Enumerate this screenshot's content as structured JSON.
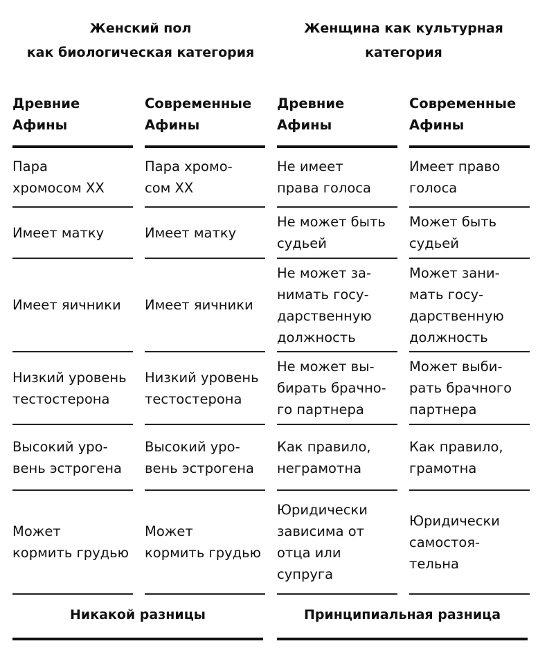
{
  "groups": [
    {
      "title": "Женский пол\nкак биологическая категория",
      "footer": "Никакой разницы"
    },
    {
      "title": "Женщина как культурная\nкатегория",
      "footer": "Принципиальная разница"
    }
  ],
  "columns": [
    "Древние\nАфины",
    "Современные\nАфины",
    "Древние\nАфины",
    "Современные\nАфины"
  ],
  "rows": [
    [
      "Пара\nхромосом XX",
      "Пара хромо-\nсом XX",
      "Не имеет\nправа голоса",
      "Имеет право\nголоса"
    ],
    [
      "Имеет матку",
      "Имеет матку",
      "Не может быть\nсудьей",
      "Может быть\nсудьей"
    ],
    [
      "Имеет яичники",
      "Имеет яичники",
      "Не может за-\nнимать госу-\nдарственную\nдолжность",
      "Может зани-\nмать госу-\nдарственную\nдолжность"
    ],
    [
      "Низкий уровень\nтестостерона",
      "Низкий уровень\nтестостерона",
      "Не может вы-\nбирать брачно-\nго партнера",
      "Может выби-\nрать брачного\nпартнера"
    ],
    [
      "Высокий уро-\nвень эстрогена",
      "Высокий уро-\nвень эстрогена",
      "Как правило,\nнеграмотна",
      "Как правило,\nграмотна"
    ],
    [
      "Может\nкормить грудью",
      "Может\nкормить грудью",
      "Юридически\nзависима от\nотца или\nсупруга",
      "Юридически\nсамостоя-\nтельна"
    ]
  ]
}
